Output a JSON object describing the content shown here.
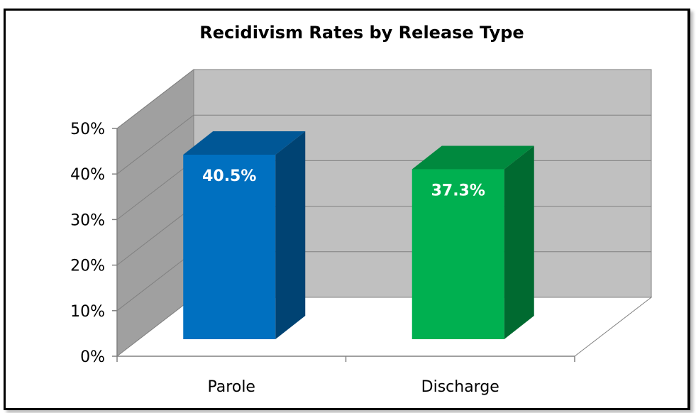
{
  "chart_data": {
    "type": "bar",
    "style": "3d-column",
    "title": "Recidivism Rates by Release Type",
    "categories": [
      "Parole",
      "Discharge"
    ],
    "values": [
      40.5,
      37.3
    ],
    "value_labels": [
      "40.5%",
      "37.3%"
    ],
    "colors": [
      "#0070C0",
      "#00B050"
    ],
    "ylim": [
      0,
      50
    ],
    "yticks": [
      "0%",
      "10%",
      "20%",
      "30%",
      "40%",
      "50%"
    ],
    "ytick_values": [
      0,
      10,
      20,
      30,
      40,
      50
    ],
    "grid": true,
    "legend": "none",
    "xlabel": "",
    "ylabel": ""
  }
}
